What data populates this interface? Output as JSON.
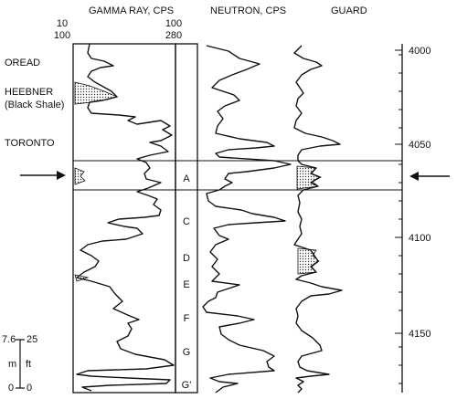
{
  "headers": {
    "gamma": "GAMMA RAY, CPS",
    "neutron": "NEUTRON, CPS",
    "guard": "GUARD"
  },
  "gamma_scales": {
    "left_top": "10",
    "left_bottom": "100",
    "right_top": "100",
    "right_bottom": "280"
  },
  "formations": {
    "oread": "OREAD",
    "heebner": "HEEBNER",
    "heebner_note": "(Black Shale)",
    "toronto": "TORONTO"
  },
  "zones": [
    "A",
    "C",
    "D",
    "E",
    "F",
    "G",
    "G'"
  ],
  "depth_labels": [
    "4000",
    "4050",
    "4100",
    "4150"
  ],
  "scale_bar": {
    "m_value": "7.6",
    "ft_value": "25",
    "m_unit": "m",
    "ft_unit": "ft",
    "zero_m": "0",
    "zero_ft": "0"
  }
}
